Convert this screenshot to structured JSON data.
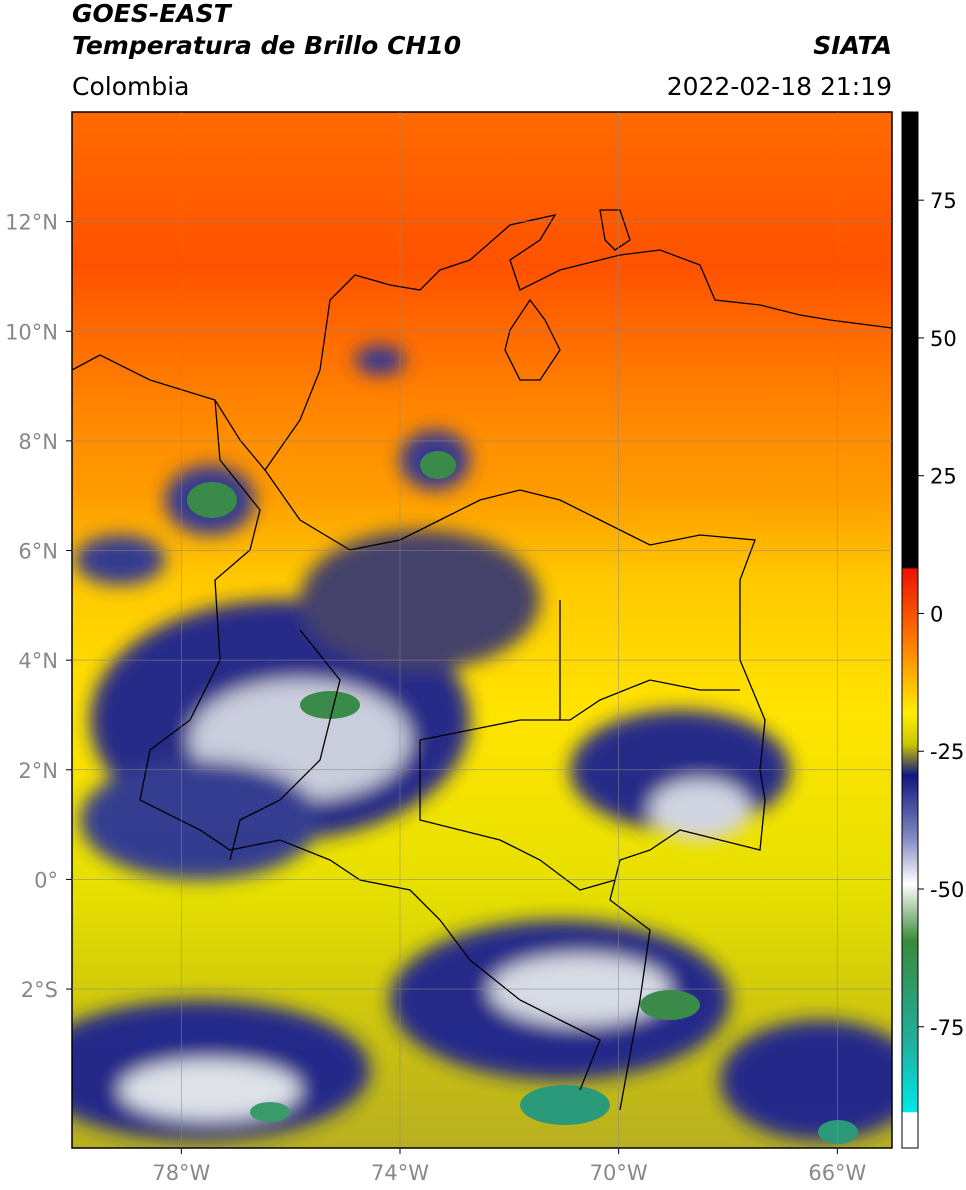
{
  "header": {
    "title": "GOES-EAST",
    "subtitle": "Temperatura de Brillo CH10",
    "source": "SIATA",
    "region": "Colombia",
    "datetime": "2022-02-18 21:19"
  },
  "map": {
    "lonlim": [
      -80,
      -65
    ],
    "latlim": [
      -4.9,
      14
    ],
    "lonticks": [
      {
        "value": -78,
        "label": "78°W"
      },
      {
        "value": -74,
        "label": "74°W"
      },
      {
        "value": -70,
        "label": "70°W"
      },
      {
        "value": -66,
        "label": "66°W"
      }
    ],
    "latticks": [
      {
        "value": 12,
        "label": "12°N"
      },
      {
        "value": 10,
        "label": "10°N"
      },
      {
        "value": 8,
        "label": "8°N"
      },
      {
        "value": 6,
        "label": "6°N"
      },
      {
        "value": 4,
        "label": "4°N"
      },
      {
        "value": 2,
        "label": "2°N"
      },
      {
        "value": 0,
        "label": "0°"
      },
      {
        "value": -2,
        "label": "2°S"
      }
    ]
  },
  "colorbar": {
    "lim": [
      -97,
      91
    ],
    "ticks": [
      75,
      50,
      25,
      0,
      -25,
      -50,
      -75
    ]
  }
}
